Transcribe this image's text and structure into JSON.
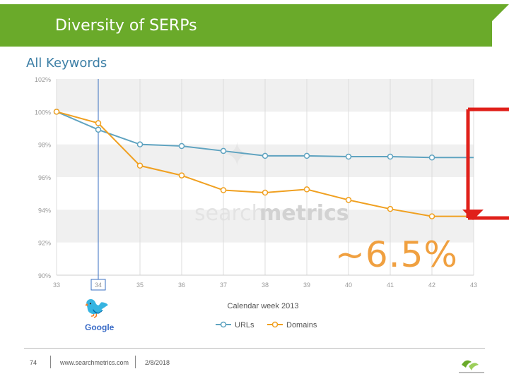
{
  "header": {
    "title": "Diversity of SERPs",
    "subtitle": "All Keywords"
  },
  "colors": {
    "title_bar": "#6aaa2a",
    "urls_series": "#5fa3c0",
    "domains_series": "#f0a020",
    "bracket": "#e0201a",
    "annotation": "#f0a040",
    "marker_line": "#3a6fc0"
  },
  "annotation": {
    "text": "~6.5%"
  },
  "watermark": {
    "text_light": "search",
    "text_bold": "metrics"
  },
  "footer": {
    "page_number": "74",
    "website": "www.searchmetrics.com",
    "date": "2/8/2018"
  },
  "chart_data": {
    "type": "line",
    "title": "",
    "xlabel": "Calendar week 2013",
    "ylabel": "",
    "x": [
      33,
      34,
      35,
      36,
      37,
      38,
      39,
      40,
      41,
      42,
      43
    ],
    "x_tick_labels": [
      "33",
      "34",
      "35",
      "36",
      "37",
      "38",
      "39",
      "40",
      "41",
      "42",
      "43"
    ],
    "ylim": [
      90,
      102
    ],
    "y_ticks": [
      90,
      92,
      94,
      96,
      98,
      100,
      102
    ],
    "y_tick_labels": [
      "90%",
      "92%",
      "94%",
      "96%",
      "98%",
      "100%",
      "102%"
    ],
    "highlighted_x": 34,
    "series": [
      {
        "name": "URLs",
        "values": [
          100.0,
          98.9,
          98.0,
          97.9,
          97.6,
          97.3,
          97.3,
          97.25,
          97.25,
          97.2,
          97.2
        ]
      },
      {
        "name": "Domains",
        "values": [
          100.0,
          99.3,
          96.7,
          96.1,
          95.2,
          95.05,
          95.25,
          94.6,
          94.05,
          93.6,
          93.6
        ]
      }
    ],
    "legend_position": "bottom",
    "grid": true
  }
}
